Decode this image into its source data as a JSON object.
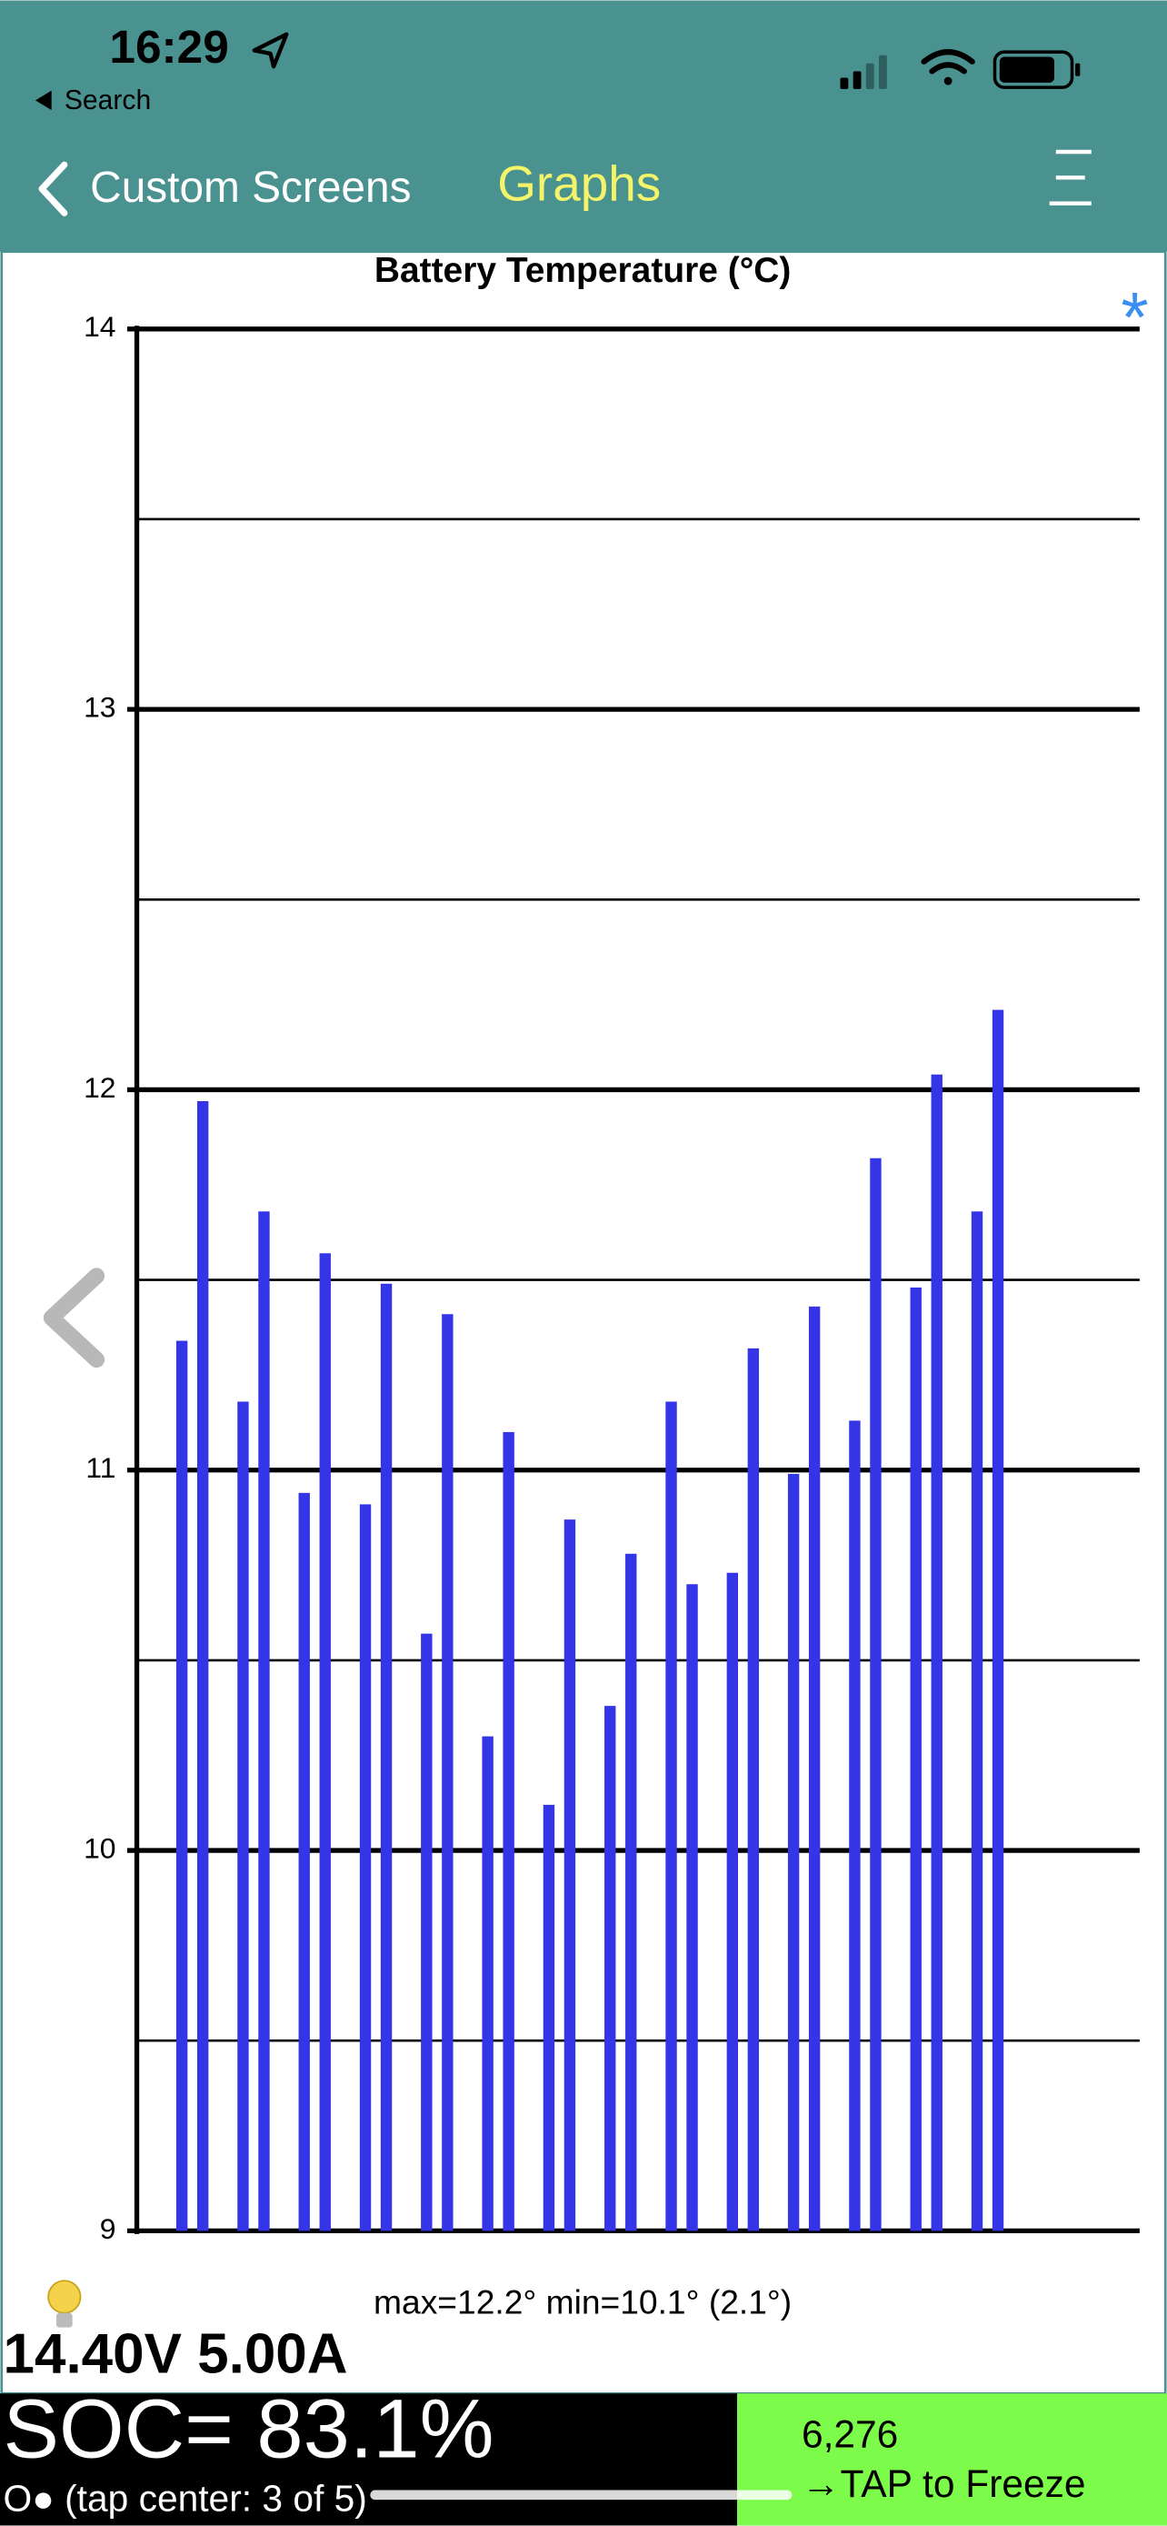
{
  "status_bar": {
    "time": "16:29",
    "back_app": "Search"
  },
  "nav": {
    "back": "Custom Screens",
    "title": "Graphs"
  },
  "chart_marker": "*",
  "chart_data": {
    "type": "bar",
    "title": "Battery Temperature (°C)",
    "categories": [
      null,
      null,
      null,
      null,
      null,
      null,
      null,
      null,
      null,
      null,
      null,
      null,
      null,
      null,
      null,
      null,
      null,
      null,
      null,
      null,
      null,
      null,
      null,
      null,
      null,
      null,
      null,
      null
    ],
    "values": [
      11.34,
      11.97,
      11.18,
      11.68,
      10.94,
      11.57,
      10.91,
      11.49,
      10.57,
      11.41,
      10.3,
      11.1,
      10.12,
      10.87,
      10.38,
      10.78,
      11.18,
      10.7,
      10.73,
      11.32,
      10.99,
      11.43,
      11.13,
      11.82,
      11.48,
      12.04,
      11.68,
      12.21
    ],
    "color": "#3535e8",
    "ylim": [
      9,
      14
    ],
    "yticks": [
      9,
      10,
      11,
      12,
      13,
      14
    ],
    "minor_yticks": [
      9.5,
      10.5,
      11.5,
      12.5,
      13.5
    ],
    "grid": true
  },
  "stats": "max=12.2°  min=10.1° (2.1°)",
  "readout": "14.40V 5.00A",
  "soc": "SOC= 83.1%",
  "page_indicator": "O● (tap center: 3 of 5)",
  "counter": "6,276",
  "freeze_button": "→TAP to Freeze"
}
